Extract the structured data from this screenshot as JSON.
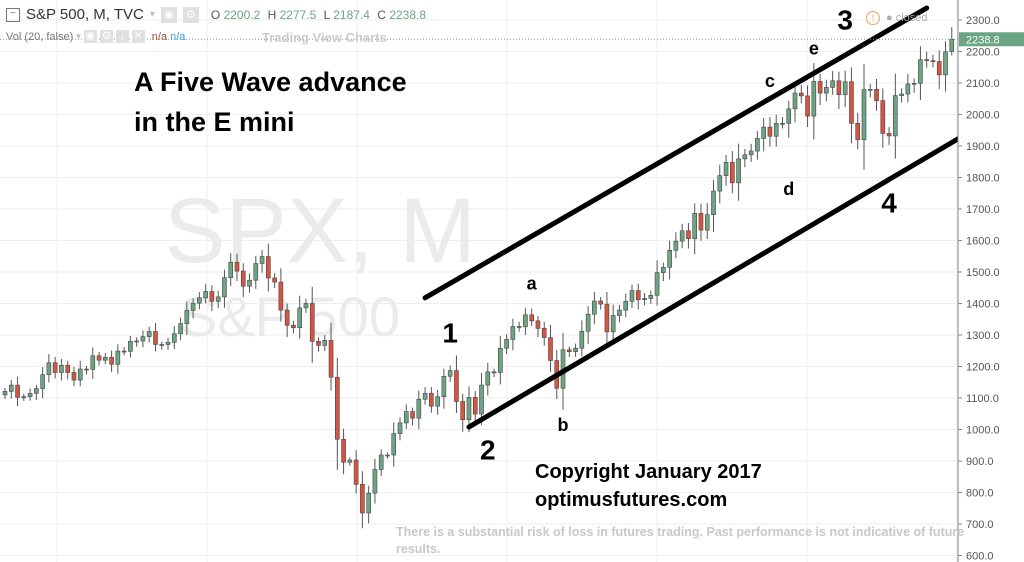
{
  "header": {
    "symbol": "S&P 500, M, TVC",
    "ohlc": [
      {
        "label": "O",
        "value": "2200.2"
      },
      {
        "label": "H",
        "value": "2277.5"
      },
      {
        "label": "L",
        "value": "2187.4"
      },
      {
        "label": "C",
        "value": "2238.8"
      }
    ],
    "volume_label": "Vol (20, false)",
    "volume_values": [
      "n/a",
      "n/a"
    ],
    "brand_text": "Trading View Charts",
    "market_status": "closed"
  },
  "watermark": {
    "main": "SPX, M",
    "sub": "S&P 500"
  },
  "annotations_text": {
    "title_line1": "A Five Wave advance",
    "title_line2": "in the E mini",
    "copyright": "Copyright January 2017",
    "site": "optimusfutures.com",
    "disclaimer": "There is a substantial risk of loss in futures trading. Past performance is not indicative of future results."
  },
  "colors": {
    "up": "#6ba583",
    "down": "#d75442",
    "last_price": "#6ba583",
    "trendline": "#000000"
  },
  "chart_data": {
    "type": "candlestick",
    "interval": "monthly",
    "start": "2004-05",
    "close": [
      1121,
      1141,
      1102,
      1104,
      1115,
      1130,
      1174,
      1212,
      1181,
      1204,
      1181,
      1157,
      1192,
      1191,
      1234,
      1220,
      1229,
      1207,
      1249,
      1248,
      1280,
      1281,
      1295,
      1311,
      1270,
      1270,
      1277,
      1304,
      1336,
      1378,
      1401,
      1418,
      1438,
      1407,
      1421,
      1482,
      1531,
      1503,
      1455,
      1474,
      1527,
      1549,
      1481,
      1468,
      1379,
      1331,
      1323,
      1386,
      1400,
      1280,
      1267,
      1283,
      1166,
      969,
      896,
      903,
      826,
      735,
      798,
      873,
      919,
      919,
      987,
      1021,
      1057,
      1036,
      1096,
      1115,
      1074,
      1104,
      1169,
      1187,
      1089,
      1031,
      1102,
      1049,
      1141,
      1183,
      1181,
      1258,
      1286,
      1327,
      1326,
      1364,
      1345,
      1321,
      1292,
      1219,
      1131,
      1253,
      1247,
      1258,
      1312,
      1366,
      1408,
      1398,
      1310,
      1362,
      1379,
      1407,
      1441,
      1412,
      1416,
      1426,
      1498,
      1515,
      1569,
      1598,
      1631,
      1606,
      1686,
      1633,
      1682,
      1757,
      1806,
      1848,
      1783,
      1859,
      1872,
      1884,
      1924,
      1960,
      1931,
      1972,
      1972,
      2018,
      2068,
      2059,
      1995,
      2105,
      2068,
      2086,
      2107,
      2063,
      2104,
      1972,
      1920,
      2079,
      2080,
      2044,
      1940,
      1932,
      2060,
      2065,
      2097,
      2099,
      2174,
      2171,
      2168,
      2126,
      2199,
      2238.8
    ],
    "last": {
      "open": 2200.2,
      "high": 2277.5,
      "low": 2187.4,
      "close": 2238.8
    },
    "y_axis": {
      "min": 600,
      "max": 2300,
      "step": 100,
      "tick_labels": [
        "600.0",
        "700.0",
        "800.0",
        "900.0",
        "1000.0",
        "1100.0",
        "1200.0",
        "1300.0",
        "1400.0",
        "1500.0",
        "1600.0",
        "1700.0",
        "1800.0",
        "1900.0",
        "2000.0",
        "2100.0",
        "2200.0",
        "2300.0"
      ]
    },
    "last_price_label": "2238.8",
    "grid": true,
    "trendlines": [
      {
        "from": [
          "2009-12",
          1418
        ],
        "to": [
          "2016-08",
          2338
        ]
      },
      {
        "from": [
          "2010-07",
          1008
        ],
        "to": [
          "2017-11",
          2040
        ]
      }
    ],
    "wave_labels": [
      {
        "text": "1",
        "date": "2010-04",
        "price": 1300,
        "big": true
      },
      {
        "text": "2",
        "date": "2010-10",
        "price": 929,
        "big": true
      },
      {
        "text": "3",
        "date": "2015-07",
        "price": 2294,
        "big": true
      },
      {
        "text": "4",
        "date": "2016-02",
        "price": 1713,
        "big": true
      },
      {
        "text": "a",
        "date": "2011-05",
        "price": 1459,
        "big": false
      },
      {
        "text": "b",
        "date": "2011-10",
        "price": 1011,
        "big": false
      },
      {
        "text": "c",
        "date": "2014-07",
        "price": 2103,
        "big": false
      },
      {
        "text": "d",
        "date": "2014-10",
        "price": 1760,
        "big": false
      },
      {
        "text": "e",
        "date": "2015-02",
        "price": 2205,
        "big": false
      }
    ]
  }
}
